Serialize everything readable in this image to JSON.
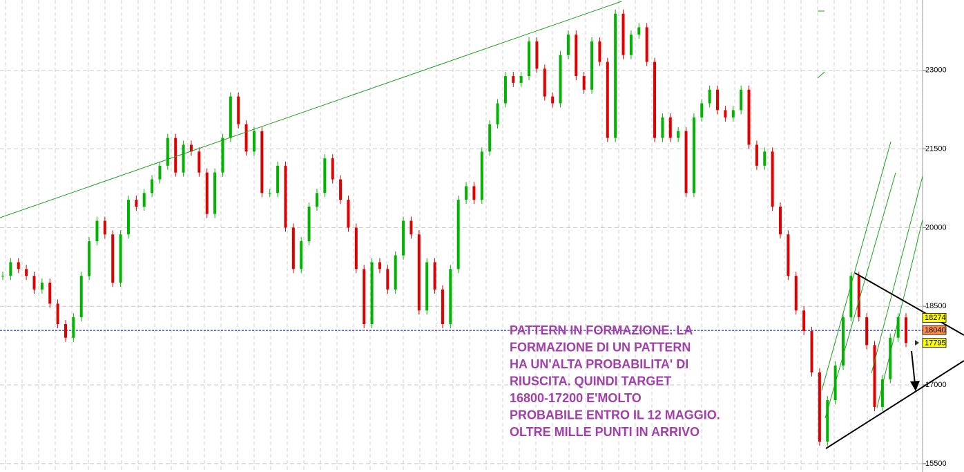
{
  "chart_data": {
    "type": "candlestick",
    "values": [
      19080,
      19340,
      19210,
      19080,
      18820,
      18950,
      18550,
      18160,
      17900,
      18290,
      19080,
      19740,
      20130,
      19870,
      18950,
      19870,
      20530,
      20400,
      20660,
      20920,
      21180,
      21710,
      21050,
      21580,
      21450,
      21050,
      20260,
      21050,
      21710,
      22500,
      21970,
      21450,
      21840,
      20660,
      20660,
      21180,
      20000,
      19210,
      19740,
      20400,
      20660,
      21320,
      20920,
      20530,
      20000,
      19210,
      18160,
      19340,
      19210,
      18820,
      19470,
      20130,
      19870,
      18420,
      19340,
      18820,
      18160,
      19210,
      20530,
      20790,
      20530,
      21450,
      21970,
      22370,
      22890,
      22760,
      22890,
      23550,
      23030,
      22500,
      22370,
      23290,
      23680,
      22890,
      22630,
      23550,
      23160,
      21710,
      24080,
      23290,
      23680,
      23820,
      23160,
      21710,
      22100,
      21710,
      21840,
      20660,
      22100,
      22370,
      22630,
      22240,
      22100,
      22240,
      22630,
      21580,
      21180,
      21450,
      20400,
      19870,
      19080,
      18420,
      18030,
      17240,
      15920,
      16710,
      17370,
      18290,
      19080,
      18290,
      17760,
      16580,
      17110,
      17900,
      18290,
      17800
    ],
    "up_color": "#00b400",
    "down_color": "#e00000",
    "ylim": [
      15340,
      24340
    ],
    "yticks": [
      15500,
      17000,
      18500,
      20000,
      21500,
      23000
    ],
    "grid": true,
    "reference_line": {
      "value": 18040,
      "color": "#0000cc"
    },
    "price_labels": [
      {
        "value": 18274,
        "color": "#ffff00"
      },
      {
        "value": 18040,
        "color": "#ff8c40"
      },
      {
        "value": 17795,
        "color": "#ffff00"
      }
    ],
    "annotation": [
      "PATTERN IN FORMAZIONE. LA",
      "FORMAZIONE DI UN PATTERN",
      "HA UN'ALTA PROBABILITA' DI",
      "RIUSCITA. QUINDI TARGET",
      "16800-17200 E'MOLTO",
      "PROBABILE ENTRO IL 12 MAGGIO.",
      "OLTRE MILLE PUNTI IN ARRIVO"
    ],
    "annotation_color": "#a040a8"
  }
}
